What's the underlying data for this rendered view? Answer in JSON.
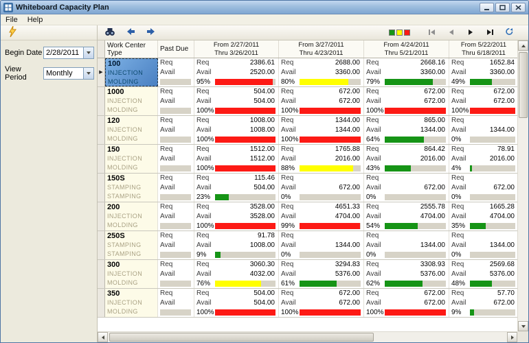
{
  "window": {
    "title": "Whiteboard Capacity Plan"
  },
  "menu": {
    "items": [
      "File",
      "Help"
    ]
  },
  "sidebar": {
    "begin_date_label": "Begin Date",
    "begin_date_value": "2/28/2011",
    "view_period_label": "View Period",
    "view_period_value": "Monthly"
  },
  "palette": {
    "red": "#fd1a15",
    "yellow": "#ffff00",
    "green": "#169416"
  },
  "grid": {
    "req_label": "Req",
    "avail_label": "Avail",
    "headers": {
      "work_center": "Work Center Type",
      "past_due": "Past Due",
      "periods": [
        {
          "line1": "From 2/27/2011",
          "line2": "Thru 3/26/2011"
        },
        {
          "line1": "From 3/27/2011",
          "line2": "Thru 4/23/2011"
        },
        {
          "line1": "From 4/24/2011",
          "line2": "Thru 5/21/2011"
        },
        {
          "line1": "From 5/22/2011",
          "line2": "Thru 6/18/2011"
        }
      ]
    },
    "rows": [
      {
        "code": "100",
        "line1": "INJECTION",
        "line2": "MOLDING",
        "selected": true,
        "past_due": {
          "req": "",
          "avail": "",
          "pct": null,
          "color": null
        },
        "periods": [
          {
            "req": "2386.61",
            "avail": "2520.00",
            "pct": 95,
            "color": "red"
          },
          {
            "req": "2688.00",
            "avail": "3360.00",
            "pct": 80,
            "color": "yellow"
          },
          {
            "req": "2668.16",
            "avail": "3360.00",
            "pct": 79,
            "color": "green"
          },
          {
            "req": "1652.84",
            "avail": "3360.00",
            "pct": 49,
            "color": "green"
          }
        ]
      },
      {
        "code": "1000",
        "line1": "INJECTION",
        "line2": "MOLDING",
        "selected": false,
        "past_due": {
          "req": "",
          "avail": "",
          "pct": null,
          "color": null
        },
        "periods": [
          {
            "req": "504.00",
            "avail": "504.00",
            "pct": 100,
            "color": "red"
          },
          {
            "req": "672.00",
            "avail": "672.00",
            "pct": 100,
            "color": "red"
          },
          {
            "req": "672.00",
            "avail": "672.00",
            "pct": 100,
            "color": "red"
          },
          {
            "req": "672.00",
            "avail": "672.00",
            "pct": 100,
            "color": "red"
          }
        ]
      },
      {
        "code": "120",
        "line1": "INJECTION",
        "line2": "MOLDING",
        "selected": false,
        "past_due": {
          "req": "",
          "avail": "",
          "pct": null,
          "color": null
        },
        "periods": [
          {
            "req": "1008.00",
            "avail": "1008.00",
            "pct": 100,
            "color": "red"
          },
          {
            "req": "1344.00",
            "avail": "1344.00",
            "pct": 100,
            "color": "red"
          },
          {
            "req": "865.00",
            "avail": "1344.00",
            "pct": 64,
            "color": "green"
          },
          {
            "req": "",
            "avail": "1344.00",
            "pct": 0,
            "color": null
          }
        ]
      },
      {
        "code": "150",
        "line1": "INJECTION",
        "line2": "MOLDING",
        "selected": false,
        "past_due": {
          "req": "",
          "avail": "",
          "pct": null,
          "color": null
        },
        "periods": [
          {
            "req": "1512.00",
            "avail": "1512.00",
            "pct": 100,
            "color": "red"
          },
          {
            "req": "1765.88",
            "avail": "2016.00",
            "pct": 88,
            "color": "yellow"
          },
          {
            "req": "864.42",
            "avail": "2016.00",
            "pct": 43,
            "color": "green"
          },
          {
            "req": "78.91",
            "avail": "2016.00",
            "pct": 4,
            "color": "green"
          }
        ]
      },
      {
        "code": "150S",
        "line1": "STAMPING",
        "line2": "STAMPING",
        "selected": false,
        "past_due": {
          "req": "",
          "avail": "",
          "pct": null,
          "color": null
        },
        "periods": [
          {
            "req": "115.46",
            "avail": "504.00",
            "pct": 23,
            "color": "green"
          },
          {
            "req": "",
            "avail": "672.00",
            "pct": 0,
            "color": null
          },
          {
            "req": "",
            "avail": "672.00",
            "pct": 0,
            "color": null
          },
          {
            "req": "",
            "avail": "672.00",
            "pct": 0,
            "color": null
          }
        ]
      },
      {
        "code": "200",
        "line1": "INJECTION",
        "line2": "MOLDING",
        "selected": false,
        "past_due": {
          "req": "",
          "avail": "",
          "pct": null,
          "color": null
        },
        "periods": [
          {
            "req": "3528.00",
            "avail": "3528.00",
            "pct": 100,
            "color": "red"
          },
          {
            "req": "4651.33",
            "avail": "4704.00",
            "pct": 99,
            "color": "red"
          },
          {
            "req": "2555.78",
            "avail": "4704.00",
            "pct": 54,
            "color": "green"
          },
          {
            "req": "1665.28",
            "avail": "4704.00",
            "pct": 35,
            "color": "green"
          }
        ]
      },
      {
        "code": "250S",
        "line1": "STAMPING",
        "line2": "STAMPING",
        "selected": false,
        "past_due": {
          "req": "",
          "avail": "",
          "pct": null,
          "color": null
        },
        "periods": [
          {
            "req": "91.78",
            "avail": "1008.00",
            "pct": 9,
            "color": "green"
          },
          {
            "req": "",
            "avail": "1344.00",
            "pct": 0,
            "color": null
          },
          {
            "req": "",
            "avail": "1344.00",
            "pct": 0,
            "color": null
          },
          {
            "req": "",
            "avail": "1344.00",
            "pct": 0,
            "color": null
          }
        ]
      },
      {
        "code": "300",
        "line1": "INJECTION",
        "line2": "MOLDING",
        "selected": false,
        "past_due": {
          "req": "",
          "avail": "",
          "pct": null,
          "color": null
        },
        "periods": [
          {
            "req": "3060.30",
            "avail": "4032.00",
            "pct": 76,
            "color": "yellow"
          },
          {
            "req": "3294.83",
            "avail": "5376.00",
            "pct": 61,
            "color": "green"
          },
          {
            "req": "3308.93",
            "avail": "5376.00",
            "pct": 62,
            "color": "green"
          },
          {
            "req": "2569.68",
            "avail": "5376.00",
            "pct": 48,
            "color": "green"
          }
        ]
      },
      {
        "code": "350",
        "line1": "INJECTION",
        "line2": "MOLDING",
        "selected": false,
        "past_due": {
          "req": "",
          "avail": "",
          "pct": null,
          "color": null
        },
        "periods": [
          {
            "req": "504.00",
            "avail": "504.00",
            "pct": 100,
            "color": "red"
          },
          {
            "req": "672.00",
            "avail": "672.00",
            "pct": 100,
            "color": "red"
          },
          {
            "req": "672.00",
            "avail": "672.00",
            "pct": 100,
            "color": "red"
          },
          {
            "req": "57.70",
            "avail": "672.00",
            "pct": 9,
            "color": "green"
          }
        ]
      }
    ]
  }
}
